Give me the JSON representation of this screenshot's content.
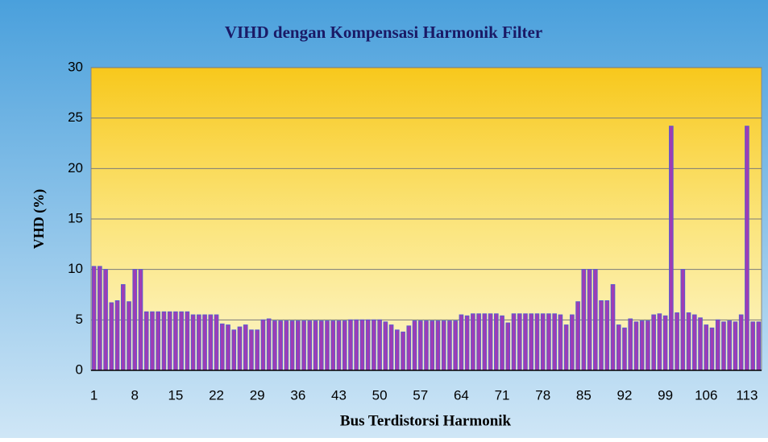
{
  "chart_data": {
    "type": "bar",
    "title": "VIHD dengan Kompensasi Harmonik Filter",
    "x_label": "Bus Terdistorsi Harmonik",
    "y_label": "VHD (%)",
    "categories": [
      1,
      null,
      null,
      null,
      null,
      null,
      null,
      8,
      null,
      null,
      null,
      null,
      null,
      null,
      15,
      null,
      null,
      null,
      null,
      null,
      null,
      22,
      null,
      null,
      null,
      null,
      null,
      null,
      29,
      null,
      null,
      null,
      null,
      null,
      null,
      36,
      null,
      null,
      null,
      null,
      null,
      null,
      43,
      null,
      null,
      null,
      null,
      null,
      null,
      50,
      null,
      null,
      null,
      null,
      null,
      null,
      57,
      null,
      null,
      null,
      null,
      null,
      null,
      64,
      null,
      null,
      null,
      null,
      null,
      null,
      71,
      null,
      null,
      null,
      null,
      null,
      null,
      78,
      null,
      null,
      null,
      null,
      null,
      null,
      85,
      null,
      null,
      null,
      null,
      null,
      null,
      92,
      null,
      null,
      null,
      null,
      null,
      null,
      99,
      null,
      null,
      null,
      null,
      null,
      null,
      106,
      null,
      null,
      null,
      null,
      null,
      null,
      113,
      null,
      null
    ],
    "values": [
      10.3,
      10.3,
      10.0,
      6.7,
      6.9,
      8.5,
      6.8,
      10.0,
      10.0,
      5.8,
      5.8,
      5.8,
      5.8,
      5.8,
      5.8,
      5.8,
      5.8,
      5.5,
      5.5,
      5.5,
      5.5,
      5.5,
      4.6,
      4.5,
      4.0,
      4.3,
      4.5,
      4.0,
      4.0,
      5.0,
      5.1,
      4.9,
      4.9,
      4.9,
      4.9,
      4.9,
      4.9,
      4.9,
      4.9,
      4.9,
      4.9,
      4.9,
      4.9,
      4.9,
      5.0,
      5.0,
      5.0,
      5.0,
      5.0,
      5.0,
      4.8,
      4.5,
      4.0,
      3.8,
      4.4,
      4.9,
      4.9,
      4.9,
      4.9,
      4.9,
      4.9,
      4.9,
      4.9,
      5.5,
      5.4,
      5.6,
      5.6,
      5.6,
      5.6,
      5.6,
      5.4,
      4.7,
      5.6,
      5.6,
      5.6,
      5.6,
      5.6,
      5.6,
      5.6,
      5.6,
      5.5,
      4.5,
      5.5,
      6.8,
      10.0,
      10.0,
      10.0,
      6.9,
      6.9,
      8.5,
      4.5,
      4.2,
      5.1,
      4.8,
      4.9,
      4.9,
      5.5,
      5.6,
      5.4,
      24.2,
      5.7,
      10.0,
      5.7,
      5.5,
      5.2,
      4.5,
      4.2,
      5.0,
      4.8,
      4.9,
      4.8,
      5.5,
      24.2,
      4.8,
      4.8
    ],
    "color": "#a03cb4",
    "ylim": [
      0,
      30
    ],
    "yticks": [
      0,
      5,
      10,
      15,
      20,
      25,
      30
    ],
    "grid": true
  }
}
